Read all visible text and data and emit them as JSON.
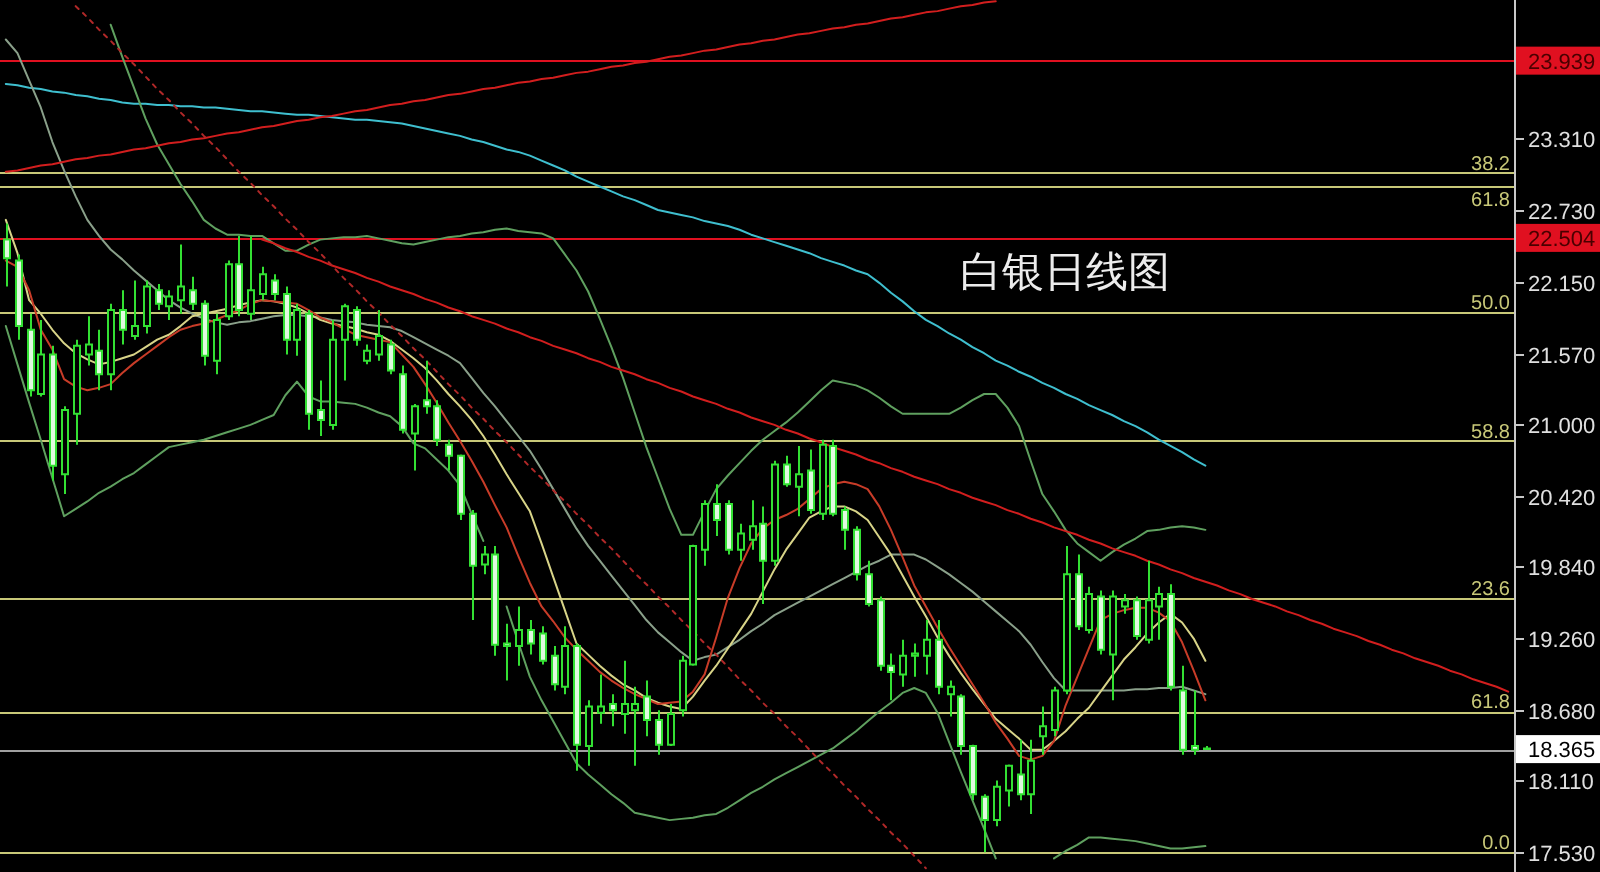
{
  "chart_data": {
    "type": "candlestick",
    "title": "白银日线图",
    "categories": [
      null,
      null,
      null,
      null,
      null,
      null,
      null,
      null,
      null,
      null,
      null,
      null,
      null,
      null,
      null,
      null,
      null,
      null,
      null,
      null,
      null,
      null,
      null,
      null,
      null,
      null,
      null,
      null,
      null,
      null,
      null,
      null,
      null,
      null,
      null,
      null,
      null,
      null,
      null,
      null,
      null,
      null,
      null,
      null,
      null,
      null,
      null,
      null,
      null,
      null,
      null,
      null,
      null,
      null,
      null,
      null,
      null,
      null,
      null,
      null,
      null,
      null,
      null,
      null,
      null,
      null,
      null,
      null,
      null,
      null,
      null,
      null,
      null,
      null,
      null,
      null,
      null,
      null,
      null,
      null,
      null,
      null,
      null,
      null,
      null,
      null,
      null,
      null,
      null,
      null,
      null,
      null,
      null,
      null,
      null,
      null,
      null,
      null,
      null,
      null,
      null,
      null,
      null,
      null,
      null,
      null,
      null,
      null,
      null,
      null,
      null,
      null,
      null,
      null,
      null,
      null,
      null,
      null,
      null,
      null,
      null,
      null,
      null,
      null,
      null,
      null,
      null,
      null,
      null,
      null
    ],
    "color": "#33e033",
    "ohlc": [
      [
        22.49,
        22.62,
        22.11,
        22.34
      ],
      [
        22.32,
        22.37,
        21.68,
        21.79
      ],
      [
        21.76,
        21.89,
        21.22,
        21.27
      ],
      [
        21.24,
        21.84,
        21.22,
        21.56
      ],
      [
        21.56,
        21.63,
        20.54,
        20.66
      ],
      [
        20.59,
        21.14,
        20.43,
        21.11
      ],
      [
        21.08,
        21.68,
        20.83,
        21.63
      ],
      [
        21.56,
        21.87,
        21.47,
        21.64
      ],
      [
        21.59,
        21.76,
        21.27,
        21.4
      ],
      [
        21.4,
        21.97,
        21.27,
        21.92
      ],
      [
        21.92,
        22.08,
        21.64,
        21.76
      ],
      [
        21.71,
        22.16,
        21.68,
        21.79
      ],
      [
        21.79,
        22.16,
        21.73,
        22.11
      ],
      [
        22.08,
        22.13,
        21.92,
        21.97
      ],
      [
        21.95,
        22.08,
        21.84,
        22.03
      ],
      [
        22.0,
        22.45,
        21.89,
        22.11
      ],
      [
        22.08,
        22.19,
        21.92,
        21.97
      ],
      [
        21.97,
        22.0,
        21.47,
        21.55
      ],
      [
        21.51,
        21.89,
        21.4,
        21.84
      ],
      [
        21.87,
        22.32,
        21.84,
        22.29
      ],
      [
        22.29,
        22.52,
        21.87,
        21.92
      ],
      [
        21.89,
        22.52,
        21.84,
        22.08
      ],
      [
        22.05,
        22.27,
        22.0,
        22.21
      ],
      [
        22.16,
        22.21,
        22.0,
        22.05
      ],
      [
        22.05,
        22.11,
        21.56,
        21.68
      ],
      [
        21.68,
        21.97,
        21.55,
        21.92
      ],
      [
        21.89,
        21.92,
        20.95,
        21.08
      ],
      [
        21.11,
        21.35,
        20.9,
        21.03
      ],
      [
        20.99,
        21.84,
        20.95,
        21.68
      ],
      [
        21.68,
        21.97,
        21.35,
        21.95
      ],
      [
        21.92,
        21.95,
        21.63,
        21.68
      ],
      [
        21.51,
        21.64,
        21.48,
        21.59
      ],
      [
        21.56,
        21.92,
        21.51,
        21.71
      ],
      [
        21.64,
        21.68,
        21.4,
        21.43
      ],
      [
        21.4,
        21.47,
        20.92,
        20.95
      ],
      [
        20.92,
        21.16,
        20.62,
        21.14
      ],
      [
        21.19,
        21.51,
        21.08,
        21.14
      ],
      [
        21.14,
        21.19,
        20.82,
        20.87
      ],
      [
        20.83,
        20.87,
        20.62,
        20.74
      ],
      [
        20.74,
        20.75,
        20.22,
        20.27
      ],
      [
        20.27,
        20.3,
        19.41,
        19.85
      ],
      [
        19.86,
        20.01,
        19.78,
        19.94
      ],
      [
        19.94,
        20.01,
        19.12,
        19.21
      ],
      [
        19.22,
        19.38,
        18.92,
        19.2
      ],
      [
        19.2,
        19.52,
        19.04,
        19.33
      ],
      [
        19.33,
        19.41,
        19.13,
        19.22
      ],
      [
        19.3,
        19.36,
        19.05,
        19.08
      ],
      [
        19.12,
        19.2,
        18.84,
        18.89
      ],
      [
        18.87,
        19.36,
        18.81,
        19.2
      ],
      [
        19.2,
        19.22,
        18.19,
        18.4
      ],
      [
        18.39,
        18.76,
        18.23,
        18.71
      ],
      [
        18.66,
        18.97,
        18.57,
        18.71
      ],
      [
        18.73,
        18.81,
        18.55,
        18.68
      ],
      [
        18.65,
        19.08,
        18.49,
        18.73
      ],
      [
        18.68,
        18.87,
        18.23,
        18.73
      ],
      [
        18.79,
        18.92,
        18.47,
        18.6
      ],
      [
        18.6,
        18.68,
        18.32,
        18.4
      ],
      [
        18.4,
        18.73,
        18.39,
        18.65
      ],
      [
        18.68,
        19.12,
        18.63,
        19.08
      ],
      [
        19.05,
        20.02,
        19.04,
        20.01
      ],
      [
        19.98,
        20.38,
        19.85,
        20.35
      ],
      [
        20.35,
        20.51,
        20.09,
        20.22
      ],
      [
        20.35,
        20.38,
        19.94,
        19.98
      ],
      [
        19.98,
        20.19,
        19.89,
        20.11
      ],
      [
        20.06,
        20.38,
        19.98,
        20.17
      ],
      [
        20.19,
        20.33,
        19.54,
        19.89
      ],
      [
        19.89,
        20.7,
        19.85,
        20.67
      ],
      [
        20.67,
        20.74,
        20.49,
        20.51
      ],
      [
        20.49,
        20.82,
        20.25,
        20.59
      ],
      [
        20.62,
        20.79,
        20.27,
        20.3
      ],
      [
        20.27,
        20.87,
        20.22,
        20.83
      ],
      [
        20.82,
        20.87,
        20.25,
        20.27
      ],
      [
        20.3,
        20.33,
        19.98,
        20.14
      ],
      [
        20.14,
        20.17,
        19.73,
        19.78
      ],
      [
        19.78,
        19.89,
        19.52,
        19.54
      ],
      [
        19.57,
        19.6,
        19.0,
        19.04
      ],
      [
        19.04,
        19.14,
        18.76,
        18.99
      ],
      [
        18.97,
        19.25,
        18.87,
        19.12
      ],
      [
        19.12,
        19.22,
        18.95,
        19.14
      ],
      [
        19.12,
        19.41,
        18.97,
        19.25
      ],
      [
        19.25,
        19.41,
        18.81,
        18.87
      ],
      [
        18.81,
        18.92,
        18.63,
        18.87
      ],
      [
        18.79,
        18.81,
        18.32,
        18.39
      ],
      [
        18.39,
        18.4,
        17.95,
        18.0
      ],
      [
        17.98,
        18.0,
        17.53,
        17.79
      ],
      [
        17.79,
        18.11,
        17.74,
        18.06
      ],
      [
        18.03,
        18.24,
        17.9,
        18.23
      ],
      [
        18.16,
        18.44,
        17.95,
        18.0
      ],
      [
        18.0,
        18.44,
        17.84,
        18.27
      ],
      [
        18.47,
        18.71,
        18.32,
        18.55
      ],
      [
        18.52,
        18.87,
        18.47,
        18.84
      ],
      [
        18.84,
        20.01,
        18.81,
        19.78
      ],
      [
        19.78,
        19.94,
        19.33,
        19.36
      ],
      [
        19.33,
        19.68,
        19.3,
        19.62
      ],
      [
        19.6,
        19.65,
        19.13,
        19.17
      ],
      [
        19.13,
        19.65,
        18.76,
        19.6
      ],
      [
        19.52,
        19.62,
        19.46,
        19.57
      ],
      [
        19.57,
        19.6,
        19.25,
        19.28
      ],
      [
        19.25,
        19.89,
        19.22,
        19.57
      ],
      [
        19.52,
        19.68,
        19.25,
        19.62
      ],
      [
        19.62,
        19.7,
        18.84,
        18.87
      ],
      [
        18.84,
        19.04,
        18.32,
        18.36
      ],
      [
        18.39,
        18.84,
        18.32,
        18.36
      ],
      [
        18.37,
        18.39,
        18.36,
        18.365
      ],
      null,
      null,
      null,
      null,
      null,
      null,
      null,
      null,
      null,
      null,
      null,
      null,
      null,
      null,
      null,
      null,
      null,
      null,
      null,
      null,
      null,
      null,
      null,
      null,
      null,
      null
    ],
    "series": [
      {
        "type": "line",
        "color": "#3fbfcf",
        "values": [
          23.75,
          23.74,
          23.72,
          23.71,
          23.69,
          23.68,
          23.66,
          23.65,
          23.63,
          23.62,
          23.6,
          23.59,
          23.59,
          23.58,
          23.58,
          23.57,
          23.57,
          23.56,
          23.56,
          23.55,
          23.54,
          23.53,
          23.53,
          23.52,
          23.51,
          23.5,
          23.5,
          23.49,
          23.48,
          23.47,
          23.46,
          23.46,
          23.45,
          23.44,
          23.43,
          23.41,
          23.39,
          23.37,
          23.35,
          23.33,
          23.3,
          23.28,
          23.25,
          23.22,
          23.2,
          23.17,
          23.13,
          23.09,
          23.05,
          23.0,
          22.96,
          22.92,
          22.88,
          22.84,
          22.81,
          22.77,
          22.73,
          22.71,
          22.69,
          22.67,
          22.64,
          22.62,
          22.6,
          22.57,
          22.53,
          22.5,
          22.47,
          22.44,
          22.41,
          22.38,
          22.34,
          22.31,
          22.28,
          22.24,
          22.21,
          22.14,
          22.06,
          21.99,
          21.91,
          21.84,
          21.79,
          21.73,
          21.68,
          21.62,
          21.57,
          21.51,
          21.47,
          21.42,
          21.38,
          21.33,
          21.29,
          21.24,
          21.2,
          21.15,
          21.11,
          21.07,
          21.02,
          20.98,
          20.93,
          20.87,
          20.82,
          20.77,
          20.71,
          20.66,
          null,
          null,
          null,
          null,
          null,
          null,
          null,
          null,
          null,
          null,
          null,
          null,
          null,
          null,
          null,
          null,
          null,
          null,
          null,
          null,
          null,
          null,
          null,
          null,
          null,
          null
        ]
      },
      {
        "type": "line",
        "color": "#5fa05f",
        "values": [
          null,
          null,
          null,
          null,
          null,
          null,
          null,
          null,
          null,
          24.23,
          23.97,
          23.72,
          23.47,
          23.26,
          23.1,
          22.94,
          22.8,
          22.65,
          22.58,
          22.53,
          22.53,
          22.52,
          22.52,
          22.46,
          22.4,
          22.4,
          22.45,
          22.49,
          22.5,
          22.51,
          22.51,
          22.52,
          22.5,
          22.48,
          22.46,
          22.45,
          22.47,
          22.49,
          22.51,
          22.52,
          22.54,
          22.55,
          22.57,
          22.58,
          22.56,
          22.55,
          22.54,
          22.5,
          22.37,
          22.24,
          22.07,
          21.85,
          21.62,
          21.37,
          21.09,
          20.81,
          20.56,
          20.31,
          20.1,
          20.1,
          20.29,
          20.47,
          20.58,
          20.68,
          20.78,
          20.87,
          20.94,
          21.01,
          21.09,
          21.18,
          21.27,
          21.35,
          21.33,
          21.31,
          21.27,
          21.21,
          21.14,
          21.08,
          21.08,
          21.08,
          21.08,
          21.08,
          21.13,
          21.19,
          21.24,
          21.24,
          21.13,
          20.98,
          20.7,
          20.43,
          20.29,
          20.14,
          20.03,
          19.96,
          19.89,
          19.96,
          20.02,
          20.07,
          20.13,
          20.14,
          20.16,
          20.17,
          20.16,
          20.14,
          null,
          null,
          null,
          null,
          null,
          null,
          null,
          null,
          null,
          null,
          null,
          null,
          null,
          null,
          null,
          null,
          null,
          null,
          null,
          null,
          null,
          null,
          null,
          null,
          null,
          null
        ]
      },
      {
        "type": "line",
        "color": "#8aa08a",
        "values": [
          24.11,
          24.0,
          23.78,
          23.56,
          23.28,
          23.05,
          22.84,
          22.65,
          22.52,
          22.41,
          22.33,
          22.24,
          22.16,
          22.08,
          22.0,
          21.94,
          21.89,
          21.85,
          21.82,
          21.8,
          21.82,
          21.83,
          21.85,
          21.87,
          21.88,
          21.88,
          21.87,
          21.86,
          21.84,
          21.83,
          21.82,
          21.8,
          21.79,
          21.78,
          21.75,
          21.7,
          21.65,
          21.6,
          21.55,
          21.49,
          21.37,
          21.25,
          21.14,
          21.02,
          20.9,
          20.78,
          20.63,
          20.47,
          20.31,
          20.15,
          20.01,
          19.89,
          19.77,
          19.65,
          19.53,
          19.41,
          19.31,
          19.23,
          19.15,
          19.08,
          19.11,
          19.13,
          19.19,
          19.25,
          19.32,
          19.38,
          19.45,
          19.5,
          19.55,
          19.6,
          19.65,
          19.7,
          19.75,
          19.8,
          19.85,
          19.89,
          19.94,
          19.94,
          19.94,
          19.9,
          19.84,
          19.78,
          19.71,
          19.64,
          19.56,
          19.48,
          19.4,
          19.32,
          19.21,
          19.07,
          18.94,
          18.84,
          18.84,
          18.84,
          18.84,
          18.84,
          18.84,
          18.85,
          18.85,
          18.86,
          18.86,
          18.87,
          18.84,
          18.81,
          null,
          null,
          null,
          null,
          null,
          null,
          null,
          null,
          null,
          null,
          null,
          null,
          null,
          null,
          null,
          null,
          null,
          null,
          null,
          null,
          null,
          null,
          null,
          null,
          null,
          null
        ]
      },
      {
        "type": "line",
        "color": "#5fa05f",
        "values": [
          21.79,
          21.48,
          21.17,
          20.87,
          20.56,
          20.25,
          20.31,
          20.37,
          20.44,
          20.49,
          20.55,
          20.6,
          20.67,
          20.74,
          20.81,
          20.83,
          20.85,
          20.87,
          20.9,
          20.93,
          20.96,
          20.99,
          21.03,
          21.07,
          21.23,
          21.34,
          21.22,
          21.18,
          21.18,
          21.17,
          21.16,
          21.13,
          21.09,
          21.06,
          20.98,
          20.84,
          20.8,
          20.71,
          20.62,
          20.5,
          20.27,
          20.05,
          null,
          19.52,
          19.23,
          18.95,
          18.76,
          18.59,
          18.42,
          18.25,
          18.16,
          18.08,
          18.0,
          17.93,
          17.85,
          17.83,
          17.81,
          17.79,
          17.8,
          17.81,
          17.83,
          17.84,
          17.89,
          17.95,
          18.01,
          18.06,
          18.12,
          18.17,
          18.22,
          18.27,
          18.32,
          18.37,
          18.44,
          18.51,
          18.59,
          18.67,
          18.74,
          18.82,
          18.86,
          18.82,
          18.66,
          18.42,
          18.18,
          17.95,
          17.72,
          17.48,
          null,
          null,
          null,
          null,
          17.48,
          17.54,
          17.59,
          17.65,
          17.65,
          17.64,
          17.63,
          17.62,
          17.6,
          17.58,
          17.56,
          17.56,
          17.57,
          17.58,
          null,
          null,
          null,
          null,
          null,
          null,
          null,
          null,
          null,
          null,
          null,
          null,
          null,
          null,
          null,
          null,
          null,
          null,
          null,
          null,
          null,
          null,
          null,
          null,
          null,
          null
        ]
      },
      {
        "type": "line",
        "color": "#d8d488",
        "values": [
          22.65,
          22.38,
          22.0,
          21.89,
          21.76,
          21.65,
          21.57,
          21.52,
          21.48,
          21.5,
          21.53,
          21.56,
          21.62,
          21.68,
          21.72,
          21.79,
          21.87,
          21.89,
          21.91,
          21.93,
          21.96,
          21.98,
          22.0,
          21.99,
          21.97,
          21.94,
          21.89,
          21.84,
          21.81,
          21.79,
          21.77,
          21.74,
          21.72,
          21.67,
          21.6,
          21.53,
          21.45,
          21.35,
          21.24,
          21.14,
          21.03,
          20.9,
          20.75,
          20.59,
          20.44,
          20.29,
          20.03,
          19.76,
          19.49,
          19.22,
          19.13,
          19.04,
          18.96,
          18.89,
          18.84,
          18.78,
          18.74,
          18.71,
          18.69,
          18.79,
          18.92,
          19.04,
          19.18,
          19.32,
          19.46,
          19.64,
          19.82,
          19.98,
          20.11,
          20.24,
          20.29,
          20.33,
          20.33,
          20.29,
          20.22,
          20.08,
          19.94,
          19.77,
          19.6,
          19.44,
          19.27,
          19.12,
          18.98,
          18.85,
          18.73,
          18.61,
          18.53,
          18.45,
          18.36,
          18.36,
          18.43,
          18.51,
          18.61,
          18.7,
          18.83,
          18.96,
          19.09,
          19.19,
          19.3,
          19.39,
          19.46,
          19.39,
          19.26,
          19.08,
          null,
          null,
          null,
          null,
          null,
          null,
          null,
          null,
          null,
          null,
          null,
          null,
          null,
          null,
          null,
          null,
          null,
          null,
          null,
          null,
          null,
          null,
          null,
          null,
          null,
          null
        ]
      },
      {
        "type": "line",
        "color": "#c83c28",
        "values": [
          22.32,
          22.27,
          22.08,
          21.76,
          21.6,
          21.36,
          21.3,
          21.27,
          21.29,
          21.32,
          21.41,
          21.49,
          21.56,
          21.63,
          21.7,
          21.76,
          21.79,
          21.81,
          21.84,
          21.88,
          21.92,
          21.97,
          22.0,
          21.99,
          21.98,
          21.97,
          21.92,
          21.86,
          21.82,
          21.77,
          21.72,
          21.7,
          21.68,
          21.66,
          21.56,
          21.46,
          21.32,
          21.17,
          21.01,
          20.86,
          20.7,
          20.53,
          20.34,
          20.16,
          19.93,
          19.71,
          19.52,
          19.4,
          19.27,
          19.17,
          19.08,
          18.99,
          18.92,
          18.86,
          18.81,
          18.77,
          18.73,
          18.74,
          18.75,
          18.83,
          18.97,
          19.27,
          19.59,
          19.83,
          20.03,
          20.15,
          20.22,
          20.26,
          20.31,
          20.39,
          20.47,
          20.51,
          20.53,
          20.51,
          20.47,
          20.33,
          20.14,
          19.92,
          19.69,
          19.52,
          19.35,
          19.19,
          19.04,
          18.89,
          18.74,
          18.58,
          18.45,
          18.31,
          18.28,
          18.31,
          18.43,
          18.72,
          18.95,
          19.18,
          19.41,
          19.46,
          19.49,
          19.51,
          19.51,
          19.47,
          19.4,
          19.23,
          19.0,
          18.76,
          null,
          null,
          null,
          null,
          null,
          null,
          null,
          null,
          null,
          null,
          null,
          null,
          null,
          null,
          null,
          null,
          null,
          null,
          null,
          null,
          null,
          null,
          null,
          null,
          null,
          null
        ]
      },
      {
        "type": "line",
        "color": "#d21e1e",
        "values": [
          23.04,
          23.05,
          23.07,
          23.09,
          23.1,
          23.12,
          23.14,
          23.15,
          23.17,
          23.18,
          23.2,
          23.22,
          23.23,
          23.25,
          23.27,
          23.28,
          23.3,
          23.31,
          23.33,
          23.35,
          23.36,
          23.38,
          23.4,
          23.41,
          23.43,
          23.45,
          23.46,
          23.48,
          23.49,
          23.51,
          23.53,
          23.54,
          23.56,
          23.58,
          23.59,
          23.61,
          23.62,
          23.64,
          23.66,
          23.67,
          23.69,
          23.71,
          23.72,
          23.74,
          23.76,
          23.77,
          23.79,
          23.8,
          23.82,
          23.84,
          23.85,
          23.87,
          23.89,
          23.9,
          23.92,
          23.93,
          23.95,
          23.97,
          23.98,
          24.0,
          24.02,
          24.03,
          24.05,
          24.07,
          24.08,
          24.1,
          24.11,
          24.13,
          24.15,
          24.16,
          24.18,
          24.2,
          24.21,
          24.23,
          24.24,
          24.26,
          24.28,
          24.29,
          24.31,
          24.33,
          24.34,
          24.36,
          24.38,
          24.39,
          24.41,
          24.42,
          null,
          null,
          null,
          null,
          null,
          null,
          null,
          null,
          null,
          null,
          null,
          null,
          null,
          null,
          null,
          null,
          null,
          null,
          null,
          null,
          null,
          null,
          null,
          null,
          null,
          null,
          null,
          null,
          null,
          null,
          null,
          null,
          null,
          null,
          null,
          null,
          null,
          null,
          null,
          null,
          null,
          null,
          null,
          null
        ]
      },
      {
        "type": "line",
        "color": "#d21e1e",
        "values": [
          null,
          null,
          null,
          null,
          null,
          null,
          null,
          null,
          null,
          null,
          null,
          null,
          null,
          null,
          null,
          null,
          null,
          null,
          null,
          null,
          null,
          null,
          22.49,
          22.46,
          22.42,
          22.39,
          22.35,
          22.32,
          22.28,
          22.25,
          22.22,
          22.18,
          22.15,
          22.11,
          22.08,
          22.05,
          22.01,
          21.98,
          21.94,
          21.91,
          21.87,
          21.84,
          21.81,
          21.77,
          21.74,
          21.7,
          21.67,
          21.63,
          21.6,
          21.57,
          21.53,
          21.5,
          21.46,
          21.43,
          21.4,
          21.36,
          21.33,
          21.29,
          21.26,
          21.22,
          21.19,
          21.16,
          21.12,
          21.09,
          21.05,
          21.02,
          20.99,
          20.95,
          20.92,
          20.88,
          20.85,
          20.81,
          20.78,
          20.75,
          20.71,
          20.68,
          20.64,
          20.61,
          20.57,
          20.54,
          20.51,
          20.47,
          20.44,
          20.4,
          20.37,
          20.34,
          20.3,
          20.27,
          20.23,
          20.2,
          20.16,
          20.13,
          20.1,
          20.06,
          20.03,
          19.99,
          19.96,
          19.93,
          19.89,
          19.86,
          19.82,
          19.79,
          19.75,
          19.72,
          19.69,
          19.65,
          19.62,
          19.58,
          19.55,
          19.52,
          19.48,
          19.45,
          19.41,
          19.38,
          19.34,
          19.31,
          19.28,
          19.24,
          19.21,
          19.17,
          19.14,
          19.1,
          19.07,
          19.04,
          19.0,
          18.97,
          18.93,
          18.9,
          18.87,
          18.83
        ]
      },
      {
        "type": "line",
        "color": "#b02828",
        "line_style": "dotted",
        "values": [
          null,
          null,
          null,
          null,
          null,
          null,
          24.38,
          24.29,
          24.19,
          24.1,
          24.0,
          23.91,
          23.81,
          23.71,
          23.62,
          23.52,
          23.43,
          23.33,
          23.24,
          23.14,
          23.04,
          22.95,
          22.85,
          22.76,
          22.66,
          22.57,
          22.47,
          22.38,
          22.28,
          22.18,
          22.09,
          21.99,
          21.9,
          21.8,
          21.71,
          21.61,
          21.52,
          21.42,
          21.32,
          21.23,
          21.13,
          21.04,
          20.94,
          20.85,
          20.75,
          20.65,
          20.56,
          20.46,
          20.37,
          20.27,
          20.18,
          20.08,
          19.99,
          19.89,
          19.79,
          19.7,
          19.6,
          19.51,
          19.41,
          19.32,
          19.22,
          19.13,
          19.03,
          18.93,
          18.84,
          18.74,
          18.65,
          18.55,
          18.46,
          18.36,
          18.26,
          18.17,
          18.07,
          17.98,
          17.88,
          17.79,
          17.69,
          17.6,
          17.5,
          17.4,
          null,
          null,
          null,
          null,
          null,
          null,
          null,
          null,
          null,
          null,
          null,
          null,
          null,
          null,
          null,
          null,
          null,
          null,
          null,
          null,
          null,
          null,
          null,
          null,
          null,
          null,
          null,
          null,
          null,
          null,
          null,
          null,
          null,
          null,
          null,
          null,
          null,
          null,
          null,
          null,
          null,
          null,
          null,
          null,
          null,
          null,
          null,
          null,
          null,
          null
        ]
      }
    ],
    "ylim": [
      17.37,
      24.43
    ],
    "yticks": [
      {
        "value": 17.53,
        "label": "17.530"
      },
      {
        "value": 18.11,
        "label": "18.110"
      },
      {
        "value": 18.68,
        "label": "18.680"
      },
      {
        "value": 19.26,
        "label": "19.260"
      },
      {
        "value": 19.84,
        "label": "19.840"
      },
      {
        "value": 20.42,
        "label": "20.420"
      },
      {
        "value": 21.0,
        "label": "21.000"
      },
      {
        "value": 21.57,
        "label": "21.570"
      },
      {
        "value": 22.15,
        "label": "22.150"
      },
      {
        "value": 22.73,
        "label": "22.730"
      },
      {
        "value": 23.31,
        "label": "23.310"
      }
    ],
    "ref_lines": [
      {
        "axis": "y",
        "value": 23.939,
        "label": "23.939",
        "color": "#e01020"
      },
      {
        "axis": "y",
        "value": 22.504,
        "label": "22.504",
        "color": "#e01020"
      },
      {
        "axis": "y",
        "value": 23.03,
        "color": "#c8c878"
      },
      {
        "axis": "y",
        "value": 22.92,
        "color": "#c8c878"
      },
      {
        "axis": "y",
        "value": 21.9,
        "color": "#c8c878"
      },
      {
        "axis": "y",
        "value": 20.86,
        "color": "#c8c878"
      },
      {
        "axis": "y",
        "value": 19.59,
        "color": "#c8c878"
      },
      {
        "axis": "y",
        "value": 18.67,
        "color": "#c8c878"
      },
      {
        "axis": "y",
        "value": 17.53,
        "color": "#c8c878"
      },
      {
        "axis": "y",
        "value": 18.365,
        "label": "18.365",
        "color": "#a0a0a0"
      }
    ],
    "annotations": [
      {
        "text": "38.2",
        "y": 23.03
      },
      {
        "text": "61.8",
        "y": 22.92
      },
      {
        "text": "50.0",
        "y": 21.9
      },
      {
        "text": "58.8",
        "y": 20.86
      },
      {
        "text": "23.6",
        "y": 19.59
      },
      {
        "text": "61.8",
        "y": 18.67
      },
      {
        "text": "0.0",
        "y": 17.53
      }
    ]
  }
}
